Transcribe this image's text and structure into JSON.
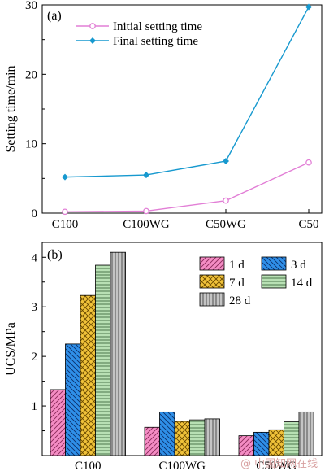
{
  "chart_data": [
    {
      "type": "line",
      "panel_label": "(a)",
      "ylabel": "Setting time/min",
      "xlabel": "",
      "categories": [
        "C100",
        "C100WG",
        "C50WG",
        "C50"
      ],
      "ylim": [
        0,
        30
      ],
      "yticks": [
        0,
        10,
        20,
        30
      ],
      "grid": false,
      "legend_position": "top-left",
      "series": [
        {
          "name": "Initial setting time",
          "values": [
            0.2,
            0.3,
            1.8,
            7.3
          ],
          "color": "#e27fd6",
          "marker": "circle-open"
        },
        {
          "name": "Final setting time",
          "values": [
            5.2,
            5.5,
            7.5,
            29.7
          ],
          "color": "#1799cf",
          "marker": "diamond-filled"
        }
      ]
    },
    {
      "type": "bar",
      "panel_label": "(b)",
      "ylabel": "UCS/MPa",
      "xlabel": "",
      "categories": [
        "C100",
        "C100WG",
        "C50WG"
      ],
      "ylim": [
        0,
        4.3
      ],
      "yticks": [
        1,
        2,
        3,
        4
      ],
      "grid": false,
      "legend_position": "top-right",
      "series": [
        {
          "name": "1 d",
          "values": [
            1.33,
            0.57,
            0.4
          ],
          "color": "#f48cc4",
          "pattern": "diag-down"
        },
        {
          "name": "3 d",
          "values": [
            2.25,
            0.88,
            0.47
          ],
          "color": "#2f8fe8",
          "pattern": "diag-up"
        },
        {
          "name": "7 d",
          "values": [
            3.23,
            0.69,
            0.52
          ],
          "color": "#f0c23a",
          "pattern": "cross"
        },
        {
          "name": "14 d",
          "values": [
            3.84,
            0.72,
            0.68
          ],
          "color": "#b8e0b4",
          "pattern": "horizontal"
        },
        {
          "name": "28 d",
          "values": [
            4.1,
            0.74,
            0.88
          ],
          "color": "#c4c4c4",
          "pattern": "vertical"
        }
      ]
    }
  ],
  "watermark": "@ 中国知网在线"
}
